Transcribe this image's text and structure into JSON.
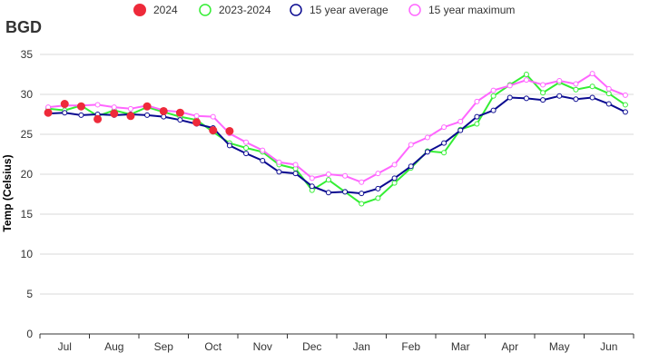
{
  "chart_data": {
    "type": "line",
    "title": "BGD",
    "ylabel": "Temp (Celsius)",
    "xlabel": "",
    "ylim": [
      0,
      35
    ],
    "yticks": [
      0,
      5,
      10,
      15,
      20,
      25,
      30,
      35
    ],
    "grid": true,
    "legend_position": "top",
    "month_labels": [
      "Jul",
      "Aug",
      "Sep",
      "Oct",
      "Nov",
      "Dec",
      "Jan",
      "Feb",
      "Mar",
      "Apr",
      "May",
      "Jun"
    ],
    "x_points_per_month": 3,
    "series": [
      {
        "name": "2024",
        "color": "#ee2a3a",
        "style": "markers",
        "values": [
          27.7,
          28.8,
          28.5,
          26.9,
          27.6,
          27.3,
          28.5,
          27.9,
          27.7,
          26.5,
          25.5,
          25.4
        ]
      },
      {
        "name": "2023-2024",
        "color": "#33ee33",
        "style": "line",
        "values": [
          28.2,
          28.0,
          28.6,
          27.3,
          28.0,
          27.5,
          28.4,
          27.8,
          27.2,
          26.8,
          25.3,
          23.9,
          23.3,
          22.8,
          21.2,
          20.7,
          18.0,
          19.3,
          17.8,
          16.3,
          17.0,
          18.9,
          20.8,
          22.9,
          22.7,
          25.6,
          26.3,
          29.8,
          31.2,
          32.5,
          30.2,
          31.5,
          30.6,
          31.0,
          30.1,
          28.7
        ]
      },
      {
        "name": "15 year average",
        "color": "#0a0a90",
        "style": "line",
        "values": [
          27.6,
          27.7,
          27.4,
          27.5,
          27.4,
          27.5,
          27.4,
          27.2,
          26.8,
          26.3,
          25.8,
          23.6,
          22.6,
          21.7,
          20.3,
          20.1,
          18.5,
          17.7,
          17.8,
          17.6,
          18.2,
          19.5,
          21.0,
          22.8,
          23.9,
          25.5,
          27.2,
          28.0,
          29.6,
          29.5,
          29.3,
          29.8,
          29.4,
          29.6,
          28.8,
          27.8
        ]
      },
      {
        "name": "15 year maximum",
        "color": "#ff66ff",
        "style": "line",
        "values": [
          28.4,
          28.6,
          28.6,
          28.7,
          28.4,
          28.2,
          28.6,
          28.0,
          27.8,
          27.3,
          27.2,
          25.1,
          24.0,
          23.0,
          21.5,
          21.2,
          19.5,
          20.0,
          19.8,
          19.0,
          20.1,
          21.2,
          23.7,
          24.6,
          25.9,
          26.6,
          29.1,
          30.5,
          31.1,
          31.8,
          31.2,
          31.7,
          31.3,
          32.6,
          30.7,
          29.9
        ]
      }
    ]
  }
}
